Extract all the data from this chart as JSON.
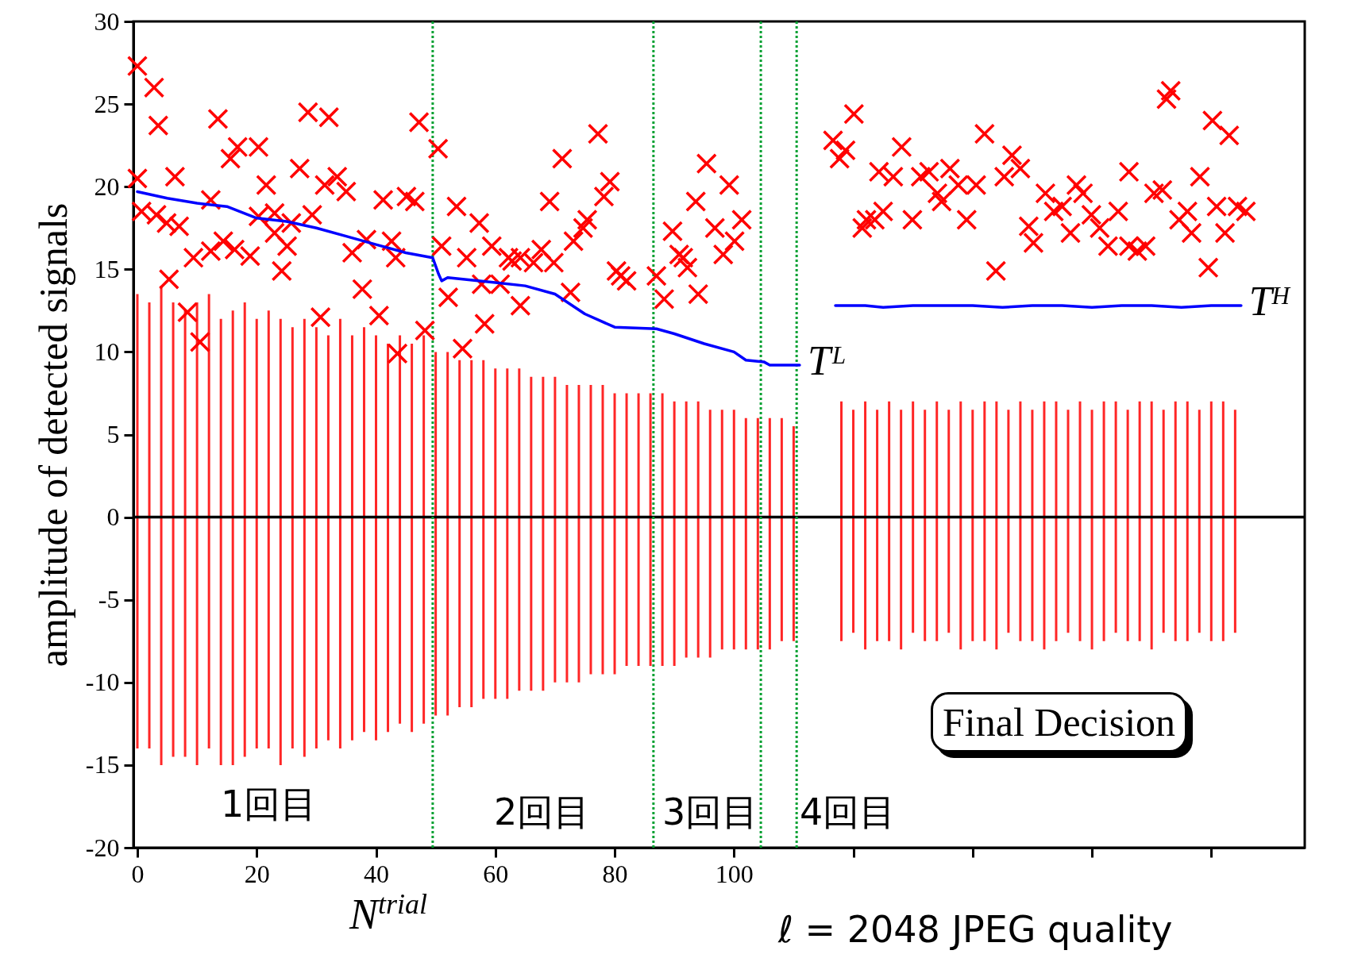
{
  "chart_data": {
    "type": "scatter",
    "ylabel": "amplitude of detected signals",
    "xlabel": "N$^{trial}$",
    "xlim": [
      0,
      195
    ],
    "xticks": [
      0,
      20,
      40,
      60,
      80,
      100,
      {
        "value": 120,
        "label": null
      },
      {
        "value": 140,
        "label": null
      },
      {
        "value": 160,
        "label": null
      },
      {
        "value": 180,
        "label": null
      }
    ],
    "ylim": [
      -20,
      30
    ],
    "yticks": [
      -20,
      -15,
      -10,
      -5,
      0,
      5,
      10,
      15,
      20,
      25,
      30
    ],
    "series": [
      {
        "type": "bar",
        "color": "#ff0000",
        "x": [
          0,
          2,
          4,
          6,
          8,
          10,
          12,
          14,
          16,
          18,
          20,
          22,
          24,
          26,
          28,
          30,
          32,
          34,
          36,
          38,
          40,
          42,
          44,
          46,
          48,
          50,
          52,
          54,
          56,
          58,
          60,
          62,
          64,
          66,
          68,
          70,
          72,
          74,
          76,
          78,
          80,
          82,
          84,
          86,
          88,
          90,
          92,
          94,
          96,
          98,
          100,
          102,
          104,
          106,
          108,
          110,
          118,
          120,
          122,
          124,
          126,
          128,
          130,
          132,
          134,
          136,
          138,
          140,
          142,
          144,
          146,
          148,
          150,
          152,
          154,
          156,
          158,
          160,
          162,
          164,
          166,
          168,
          170,
          172,
          174,
          176,
          178,
          180,
          182,
          184
        ],
        "base": [
          -14,
          -14,
          -15,
          -14.5,
          -14.5,
          -15,
          -14,
          -15,
          -15,
          -14.5,
          -14,
          -14,
          -15,
          -14,
          -14.5,
          -14,
          -13.5,
          -14,
          -13.5,
          -13,
          -13.5,
          -13,
          -12.5,
          -13,
          -12.5,
          -12,
          -12,
          -11.5,
          -11.5,
          -11,
          -11,
          -11,
          -10.5,
          -10.5,
          -10.5,
          -10,
          -10,
          -10,
          -9.5,
          -9.5,
          -9.5,
          -9,
          -9,
          -9,
          -9,
          -9,
          -8.5,
          -8.5,
          -8.5,
          -8,
          -8,
          -8,
          -8,
          -8,
          -7.5,
          -7.5,
          -7.5,
          -7,
          -8,
          -7.5,
          -7.5,
          -8,
          -7,
          -7.5,
          -7.5,
          -7,
          -8,
          -7.5,
          -7.5,
          -8,
          -7,
          -7.5,
          -7.5,
          -8,
          -7.5,
          -7,
          -7.5,
          -8,
          -7.5,
          -7,
          -7.5,
          -7.5,
          -8,
          -7,
          -7.5,
          -7.5,
          -7,
          -7.5,
          -7.5,
          -7
        ],
        "values": [
          27.5,
          27,
          29,
          27.5,
          27,
          28,
          27.5,
          27,
          27.5,
          27.5,
          26,
          26.5,
          27,
          25.5,
          26.5,
          25.5,
          24.5,
          26,
          24.5,
          24.5,
          24.5,
          23.5,
          23.5,
          23.5,
          23.5,
          22,
          22,
          21,
          21,
          20.5,
          20,
          20,
          19.5,
          19,
          19,
          18.5,
          18,
          18,
          17.5,
          17.5,
          17,
          16.5,
          16.5,
          16.5,
          16.5,
          16,
          15.5,
          15.5,
          15,
          14.5,
          14.5,
          14,
          14,
          14,
          13.5,
          13,
          14.5,
          13.5,
          15,
          14,
          14.5,
          14.5,
          14,
          14,
          14.5,
          13.5,
          15,
          14,
          14.5,
          15,
          13.5,
          14.5,
          14,
          15,
          14.5,
          13.5,
          14.5,
          14.5,
          14.5,
          14,
          14,
          14.5,
          15,
          13.5,
          14.5,
          14.5,
          13.5,
          14.5,
          14.5,
          13.5
        ]
      },
      {
        "marker": "cross",
        "color": "#ff0000",
        "x": [
          0,
          2.8,
          3.5,
          0,
          6.3,
          0.7,
          3.2,
          4.9,
          7,
          5.3,
          8.4,
          10.5,
          9.4,
          12.3,
          12.3,
          13.5,
          15.6,
          16.8,
          14.4,
          16.3,
          18.9,
          20.3,
          21.6,
          20.3,
          23,
          24.2,
          23,
          25.1,
          25.8,
          27.2,
          28.6,
          29.3,
          32.1,
          31.4,
          33.5,
          35,
          30.7,
          36,
          38.4,
          37.7,
          40.5,
          41.2,
          42.6,
          43.6,
          45.1,
          46.5,
          47.2,
          48.2,
          43.3,
          50.4,
          51,
          52.1,
          53.5,
          54.5,
          55.2,
          57.3,
          57.7,
          58.2,
          59.4,
          60.8,
          62.2,
          62.8,
          64.2,
          64.2,
          66.4,
          67.7,
          69.1,
          69.8,
          71.2,
          72.6,
          73.1,
          74.7,
          75.4,
          77.2,
          78.2,
          79.2,
          80.3,
          81,
          82,
          87,
          88.3,
          89.7,
          90.8,
          91.5,
          92.2,
          93.6,
          95.4,
          94,
          96.8,
          99.2,
          98.2,
          100.1,
          101.3,
          116.6,
          117.7,
          118.7,
          120.1,
          121.5,
          122.2,
          123.6,
          124.3,
          125,
          126.7,
          128.1,
          129.9,
          131.3,
          132.7,
          134.1,
          134.8,
          136.2,
          137.6,
          139,
          140.6,
          142,
          143.9,
          145.3,
          146.6,
          148,
          149.4,
          150.2,
          152.2,
          153.6,
          155,
          156.4,
          157.4,
          158.5,
          159.9,
          161.3,
          162.7,
          164.4,
          166.2,
          166.2,
          167.6,
          169,
          170.4,
          171.8,
          172.5,
          173.2,
          174.6,
          176,
          176.7,
          178.1,
          179.5,
          180.2,
          180.9,
          182.3,
          183,
          184.4,
          185.8
        ],
        "values": [
          27.3,
          26,
          23.7,
          20.5,
          20.6,
          18.5,
          18.3,
          17.8,
          17.6,
          14.4,
          12.4,
          10.6,
          15.7,
          16.1,
          19.2,
          24.1,
          21.7,
          22.4,
          16.7,
          16.2,
          15.8,
          22.4,
          20.1,
          18.2,
          18.4,
          14.9,
          17.2,
          16.4,
          17.8,
          21.1,
          24.5,
          18.3,
          24.2,
          20.1,
          20.6,
          19.7,
          12.1,
          16,
          16.8,
          13.8,
          12.2,
          19.2,
          16.7,
          9.9,
          19.4,
          19.1,
          23.9,
          11.3,
          15.7,
          22.3,
          16.4,
          13.3,
          18.8,
          10.2,
          15.7,
          17.8,
          14.1,
          11.7,
          16.4,
          14.1,
          15.7,
          15.5,
          12.8,
          15.7,
          15.4,
          16.2,
          19.1,
          15.4,
          21.7,
          13.6,
          16.7,
          17.5,
          18,
          23.2,
          19.4,
          20.3,
          14.9,
          14.6,
          14.3,
          14.6,
          13.2,
          17.3,
          15.9,
          15.7,
          15.1,
          19.1,
          21.4,
          13.5,
          17.5,
          20.1,
          15.9,
          16.7,
          18,
          22.8,
          21.7,
          22.2,
          24.4,
          17.5,
          18,
          18,
          20.9,
          18.5,
          20.6,
          22.4,
          18,
          20.6,
          20.9,
          19.6,
          19.1,
          21.1,
          20.1,
          18,
          20.1,
          23.2,
          14.9,
          20.6,
          21.9,
          21.1,
          17.6,
          16.6,
          19.6,
          18.5,
          18.8,
          17.2,
          20.1,
          19.6,
          18.3,
          17.5,
          16.4,
          18.5,
          20.9,
          16.4,
          16.1,
          16.4,
          19.6,
          19.8,
          25.3,
          25.8,
          18,
          18.5,
          17.2,
          20.6,
          15.1,
          24,
          18.8,
          17.2,
          23.1,
          18.8,
          18.5
        ]
      },
      {
        "type": "line",
        "name": "Tᴸ",
        "color": "#0000ff",
        "x": [
          0,
          5,
          10,
          15,
          20,
          25,
          30,
          35,
          40,
          45,
          49.5,
          50.5,
          51,
          52,
          60,
          65,
          70,
          75,
          80,
          87,
          90,
          95,
          100,
          102,
          105,
          106,
          111
        ],
        "values": [
          19.7,
          19.3,
          19,
          18.8,
          18.1,
          17.9,
          17.5,
          17,
          16.5,
          16,
          15.7,
          14.7,
          14.3,
          14.5,
          14.2,
          14,
          13.5,
          12.3,
          11.5,
          11.4,
          11.1,
          10.5,
          10,
          9.5,
          9.4,
          9.2,
          9.2
        ]
      },
      {
        "type": "line",
        "name": "Tᴴ",
        "color": "#0000ff",
        "x": [
          117,
          122,
          125,
          130,
          135,
          140,
          145,
          150,
          155,
          160,
          165,
          170,
          175,
          180,
          185
        ],
        "values": [
          12.8,
          12.8,
          12.7,
          12.8,
          12.8,
          12.8,
          12.7,
          12.8,
          12.8,
          12.7,
          12.8,
          12.8,
          12.7,
          12.8,
          12.8
        ]
      }
    ],
    "ref_lines": [
      {
        "axis": "y",
        "value": 0,
        "color": "#000000",
        "line_style": "solid"
      },
      {
        "axis": "x",
        "value": 49.5,
        "color": "#00a030",
        "line_style": "dotted"
      },
      {
        "axis": "x",
        "value": 86.5,
        "color": "#00a030",
        "line_style": "dotted"
      },
      {
        "axis": "x",
        "value": 104.5,
        "color": "#00a030",
        "line_style": "dotted"
      },
      {
        "axis": "x",
        "value": 110.5,
        "color": "#00a030",
        "line_style": "dotted"
      }
    ],
    "annotations": [
      "1回目",
      "2回目",
      "3回目",
      "4回目",
      "Final Decision",
      "ℓ = 2048   JPEG quality"
    ]
  }
}
